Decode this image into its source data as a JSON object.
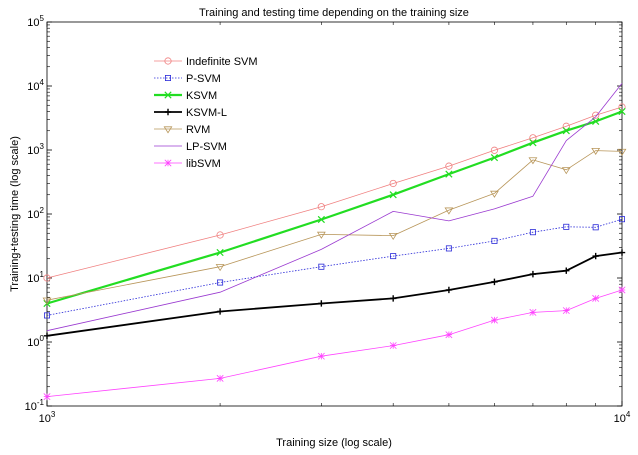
{
  "chart_data": {
    "type": "line",
    "title": "Training and testing time depending on the training size",
    "xlabel": "Training size (log scale)",
    "ylabel": "Training+testing time (log scale)",
    "xscale": "log",
    "yscale": "log",
    "xlim": [
      1000,
      10000
    ],
    "ylim": [
      0.1,
      100000
    ],
    "x_ticks": [
      {
        "value": 1000,
        "base": "10",
        "exp": "3"
      },
      {
        "value": 10000,
        "base": "10",
        "exp": "4"
      }
    ],
    "y_ticks": [
      {
        "value": 0.1,
        "base": "10",
        "exp": "-1"
      },
      {
        "value": 1,
        "base": "10",
        "exp": "0"
      },
      {
        "value": 10,
        "base": "10",
        "exp": "1"
      },
      {
        "value": 100,
        "base": "10",
        "exp": "2"
      },
      {
        "value": 1000,
        "base": "10",
        "exp": "3"
      },
      {
        "value": 10000,
        "base": "10",
        "exp": "4"
      },
      {
        "value": 100000,
        "base": "10",
        "exp": "5"
      }
    ],
    "grid": false,
    "legend_position": "top-left",
    "x": [
      1000,
      2000,
      3000,
      4000,
      5000,
      6000,
      7000,
      8000,
      9000,
      10000
    ],
    "series": [
      {
        "name": "Indefinite SVM",
        "color": "#f08080",
        "marker": "circle",
        "dash": "solid",
        "width": 0.8,
        "values": [
          10,
          47,
          130,
          300,
          560,
          990,
          1550,
          2350,
          3500,
          4700
        ]
      },
      {
        "name": "P-SVM",
        "color": "#2a2ad8",
        "marker": "square",
        "dash": "dotted",
        "width": 0.8,
        "values": [
          2.6,
          8.5,
          15,
          22,
          29,
          38,
          52,
          63,
          62,
          83
        ]
      },
      {
        "name": "KSVM",
        "color": "#22dd22",
        "marker": "x",
        "dash": "solid",
        "width": 2.2,
        "values": [
          4,
          25,
          82,
          200,
          420,
          760,
          1300,
          2000,
          2800,
          4000
        ]
      },
      {
        "name": "KSVM-L",
        "color": "#000000",
        "marker": "plus",
        "dash": "solid",
        "width": 1.8,
        "values": [
          1.25,
          3,
          4,
          4.8,
          6.5,
          8.7,
          11.5,
          13,
          22,
          25
        ]
      },
      {
        "name": "RVM",
        "color": "#b8965a",
        "marker": "triangle-down",
        "dash": "solid",
        "width": 0.8,
        "values": [
          4.5,
          15,
          48,
          46,
          115,
          210,
          700,
          490,
          980,
          950
        ]
      },
      {
        "name": "LP-SVM",
        "color": "#9a3ad0",
        "marker": "none",
        "dash": "solid",
        "width": 0.8,
        "values": [
          1.5,
          6,
          28,
          110,
          78,
          120,
          190,
          1400,
          3300,
          11000
        ]
      },
      {
        "name": "libSVM",
        "color": "#ff44ff",
        "marker": "star",
        "dash": "solid",
        "width": 0.8,
        "values": [
          0.14,
          0.27,
          0.6,
          0.88,
          1.3,
          2.2,
          2.9,
          3.1,
          4.8,
          6.5
        ]
      }
    ]
  }
}
